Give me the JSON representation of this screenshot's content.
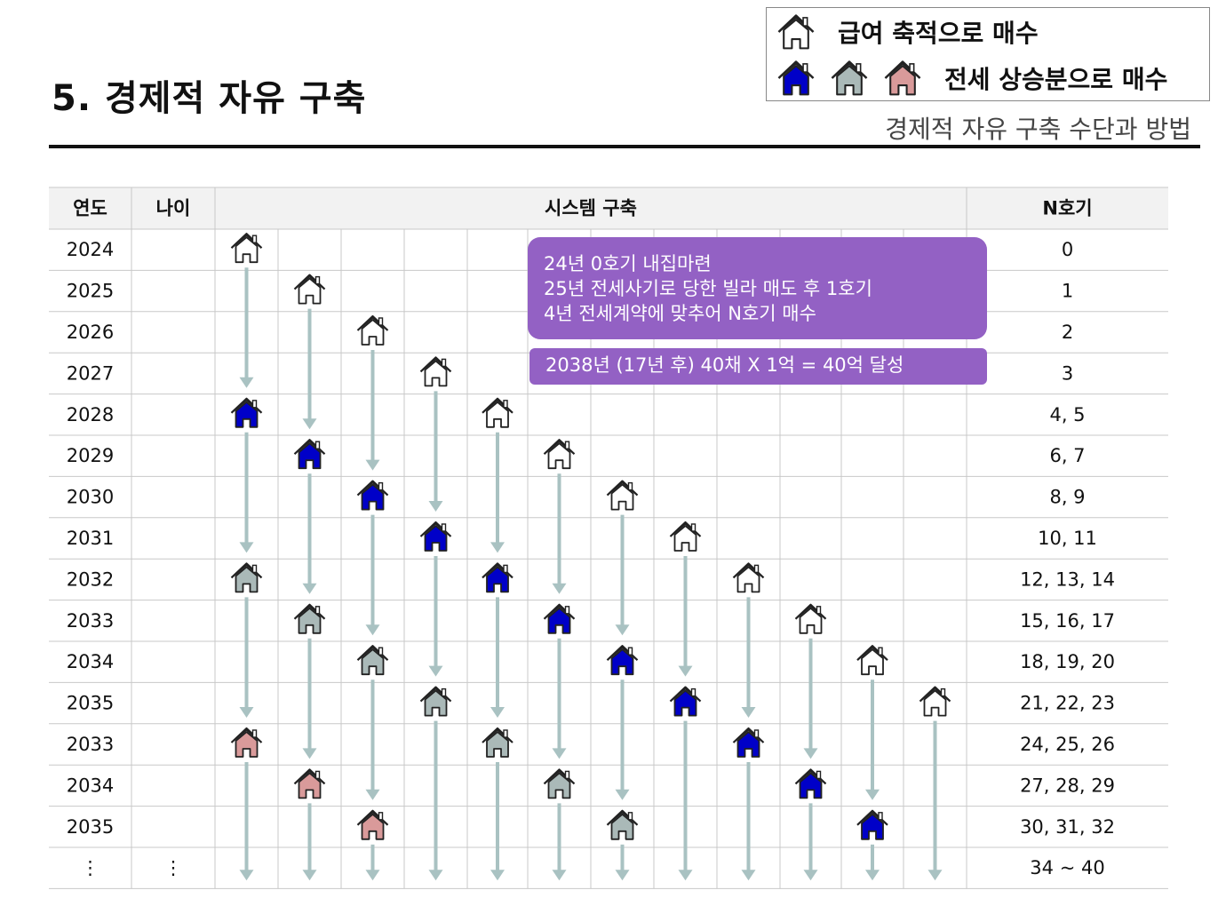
{
  "header": {
    "title": "5. 경제적 자유 구축",
    "subtitle": "경제적 자유 구축 수단과 방법"
  },
  "legend": {
    "row1_label": "급여 축적으로 매수",
    "row1_icons": [
      "house-outline-icon"
    ],
    "row2_label": "전세 상승분으로 매수",
    "row2_icons": [
      "house-blue-icon",
      "house-gray-icon",
      "house-pink-icon"
    ]
  },
  "colors": {
    "outline": "#ffffff",
    "blue": "#0000c8",
    "gray": "#aab9b8",
    "pink": "#d99a9a",
    "arrow": "#a9c2c2",
    "callout": "#9361c4",
    "header_bg": "#f2f2f2",
    "grid": "#c8c8c8"
  },
  "table": {
    "headers": {
      "year": "연도",
      "age": "나이",
      "system": "시스템 구축",
      "count": "N호기"
    },
    "rows": [
      {
        "year": "2024",
        "age": "",
        "n": "0"
      },
      {
        "year": "2025",
        "age": "",
        "n": "1"
      },
      {
        "year": "2026",
        "age": "",
        "n": "2"
      },
      {
        "year": "2027",
        "age": "",
        "n": "3"
      },
      {
        "year": "2028",
        "age": "",
        "n": "4, 5"
      },
      {
        "year": "2029",
        "age": "",
        "n": "6, 7"
      },
      {
        "year": "2030",
        "age": "",
        "n": "8, 9"
      },
      {
        "year": "2031",
        "age": "",
        "n": "10, 11"
      },
      {
        "year": "2032",
        "age": "",
        "n": "12, 13, 14"
      },
      {
        "year": "2033",
        "age": "",
        "n": "15, 16, 17"
      },
      {
        "year": "2034",
        "age": "",
        "n": "18, 19, 20"
      },
      {
        "year": "2035",
        "age": "",
        "n": "21, 22, 23"
      },
      {
        "year": "2033",
        "age": "",
        "n": "24, 25, 26"
      },
      {
        "year": "2034",
        "age": "",
        "n": "27, 28, 29"
      },
      {
        "year": "2035",
        "age": "",
        "n": "30, 31, 32"
      },
      {
        "year": "⋮",
        "age": "⋮",
        "n": "34 ~ 40"
      }
    ]
  },
  "houses": [
    {
      "row": 0,
      "col": 0,
      "type": "outline"
    },
    {
      "row": 1,
      "col": 1,
      "type": "outline"
    },
    {
      "row": 2,
      "col": 2,
      "type": "outline"
    },
    {
      "row": 3,
      "col": 3,
      "type": "outline"
    },
    {
      "row": 4,
      "col": 0,
      "type": "blue"
    },
    {
      "row": 4,
      "col": 4,
      "type": "outline"
    },
    {
      "row": 5,
      "col": 1,
      "type": "blue"
    },
    {
      "row": 5,
      "col": 5,
      "type": "outline"
    },
    {
      "row": 6,
      "col": 2,
      "type": "blue"
    },
    {
      "row": 6,
      "col": 6,
      "type": "outline"
    },
    {
      "row": 7,
      "col": 3,
      "type": "blue"
    },
    {
      "row": 7,
      "col": 7,
      "type": "outline"
    },
    {
      "row": 8,
      "col": 0,
      "type": "gray"
    },
    {
      "row": 8,
      "col": 4,
      "type": "blue"
    },
    {
      "row": 8,
      "col": 8,
      "type": "outline"
    },
    {
      "row": 9,
      "col": 1,
      "type": "gray"
    },
    {
      "row": 9,
      "col": 5,
      "type": "blue"
    },
    {
      "row": 9,
      "col": 9,
      "type": "outline"
    },
    {
      "row": 10,
      "col": 2,
      "type": "gray"
    },
    {
      "row": 10,
      "col": 6,
      "type": "blue"
    },
    {
      "row": 10,
      "col": 10,
      "type": "outline"
    },
    {
      "row": 11,
      "col": 3,
      "type": "gray"
    },
    {
      "row": 11,
      "col": 7,
      "type": "blue"
    },
    {
      "row": 11,
      "col": 11,
      "type": "outline"
    },
    {
      "row": 12,
      "col": 0,
      "type": "pink"
    },
    {
      "row": 12,
      "col": 4,
      "type": "gray"
    },
    {
      "row": 12,
      "col": 8,
      "type": "blue"
    },
    {
      "row": 13,
      "col": 1,
      "type": "pink"
    },
    {
      "row": 13,
      "col": 5,
      "type": "gray"
    },
    {
      "row": 13,
      "col": 9,
      "type": "blue"
    },
    {
      "row": 14,
      "col": 2,
      "type": "pink"
    },
    {
      "row": 14,
      "col": 6,
      "type": "gray"
    },
    {
      "row": 14,
      "col": 10,
      "type": "blue"
    }
  ],
  "callouts": {
    "box1": [
      "24년 0호기 내집마련",
      "25년 전세사기로 당한 빌라 매도 후 1호기",
      "4년 전세계약에 맞추어 N호기 매수"
    ],
    "box2": "2038년 (17년  후) 40채 X 1억 = 40억 달성"
  }
}
